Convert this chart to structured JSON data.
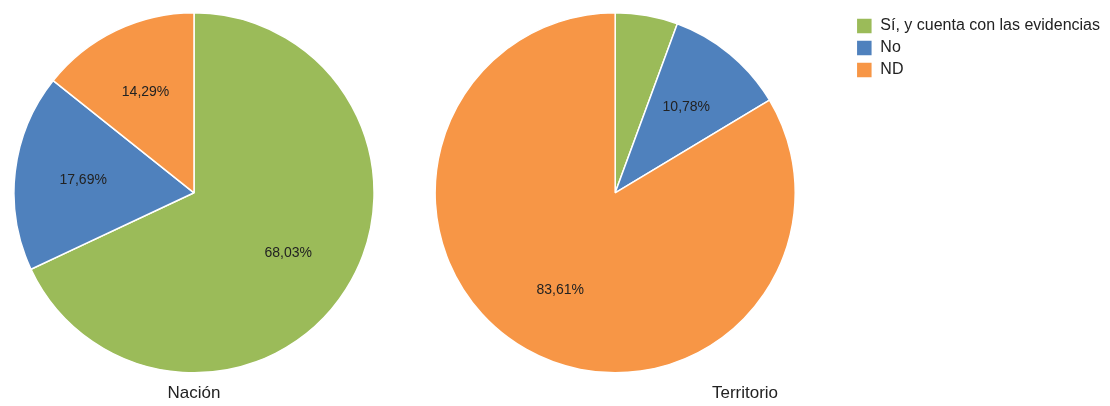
{
  "chart_data": [
    {
      "type": "pie",
      "title": "Nación",
      "categories": [
        null,
        null,
        null
      ],
      "values": [
        68.03,
        17.69,
        14.29
      ],
      "colors": [
        "#9bbb59",
        "#4f81bd",
        "#f79646"
      ],
      "value_labels": [
        "68,03%",
        "17,69%",
        "14,29%"
      ],
      "legend": false
    },
    {
      "type": "pie",
      "title": "Territorio",
      "categories": [
        "Sí, y cuenta con las evidencias",
        "No",
        "ND"
      ],
      "values": [
        5.61,
        10.78,
        83.61
      ],
      "colors": [
        "#9bbb59",
        "#4f81bd",
        "#f79646"
      ],
      "value_labels": [
        null,
        "10,78%",
        "83,61%"
      ],
      "legend": "right"
    }
  ]
}
